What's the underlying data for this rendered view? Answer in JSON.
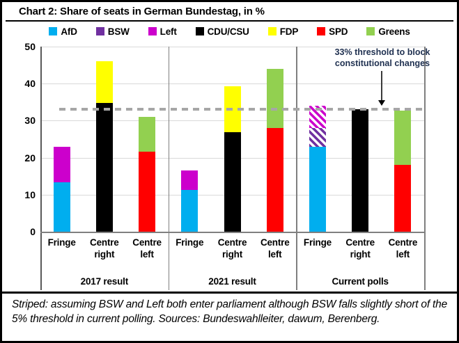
{
  "title": "Chart 2: Share of seats in German Bundestag, in %",
  "legend": {
    "items": [
      {
        "label": "AfD",
        "color": "#00AEEF"
      },
      {
        "label": "BSW",
        "color": "#7030A0"
      },
      {
        "label": "Left",
        "color": "#CC00CC"
      },
      {
        "label": "CDU/CSU",
        "color": "#000000"
      },
      {
        "label": "FDP",
        "color": "#FFFF00"
      },
      {
        "label": "SPD",
        "color": "#FF0000"
      },
      {
        "label": "Greens",
        "color": "#92D050"
      }
    ]
  },
  "chart_data": {
    "type": "bar",
    "stacked": true,
    "title": "Chart 2: Share of seats in German Bundestag, in %",
    "grid": true,
    "y_axis": {
      "min": 0,
      "max": 50,
      "step": 10,
      "tick_labels": [
        "0",
        "10",
        "20",
        "30",
        "40",
        "50"
      ]
    },
    "party_colors": {
      "AfD": "#00AEEF",
      "BSW": "#7030A0",
      "Left": "#CC00CC",
      "CDU/CSU": "#000000",
      "FDP": "#FFFF00",
      "SPD": "#FF0000",
      "Greens": "#92D050"
    },
    "threshold": {
      "value": 33,
      "color": "#A6A6A6",
      "label_line1": "33% threshold to block",
      "label_line2": "constitutional changes"
    },
    "groups": [
      {
        "label": "2017 result",
        "bars": [
          {
            "category": "Fringe",
            "segments": [
              {
                "party": "AfD",
                "value": 13.3
              },
              {
                "party": "Left",
                "value": 9.7
              }
            ]
          },
          {
            "category": "Centre right",
            "segments": [
              {
                "party": "CDU/CSU",
                "value": 34.7
              },
              {
                "party": "FDP",
                "value": 11.3
              }
            ]
          },
          {
            "category": "Centre left",
            "segments": [
              {
                "party": "SPD",
                "value": 21.6
              },
              {
                "party": "Greens",
                "value": 9.4
              }
            ]
          }
        ]
      },
      {
        "label": "2021 result",
        "bars": [
          {
            "category": "Fringe",
            "segments": [
              {
                "party": "AfD",
                "value": 11.3
              },
              {
                "party": "Left",
                "value": 5.3
              }
            ]
          },
          {
            "category": "Centre right",
            "segments": [
              {
                "party": "CDU/CSU",
                "value": 26.8
              },
              {
                "party": "FDP",
                "value": 12.5
              }
            ]
          },
          {
            "category": "Centre left",
            "segments": [
              {
                "party": "SPD",
                "value": 28.0
              },
              {
                "party": "Greens",
                "value": 16.0
              }
            ]
          }
        ]
      },
      {
        "label": "Current polls",
        "bars": [
          {
            "category": "Fringe",
            "segments": [
              {
                "party": "AfD",
                "value": 23.0
              },
              {
                "party": "BSW",
                "value": 5.0,
                "striped": true
              },
              {
                "party": "Left",
                "value": 6.0,
                "striped": true
              }
            ]
          },
          {
            "category": "Centre right",
            "segments": [
              {
                "party": "CDU/CSU",
                "value": 33.0
              }
            ]
          },
          {
            "category": "Centre left",
            "segments": [
              {
                "party": "SPD",
                "value": 18.0
              },
              {
                "party": "Greens",
                "value": 14.8
              }
            ]
          }
        ]
      }
    ]
  },
  "footnote": {
    "text": "Striped: assuming BSW and Left both enter parliament although BSW falls slightly short of the 5% threshold in current polling. Sources: Bundeswahlleiter, dawum, Berenberg."
  }
}
